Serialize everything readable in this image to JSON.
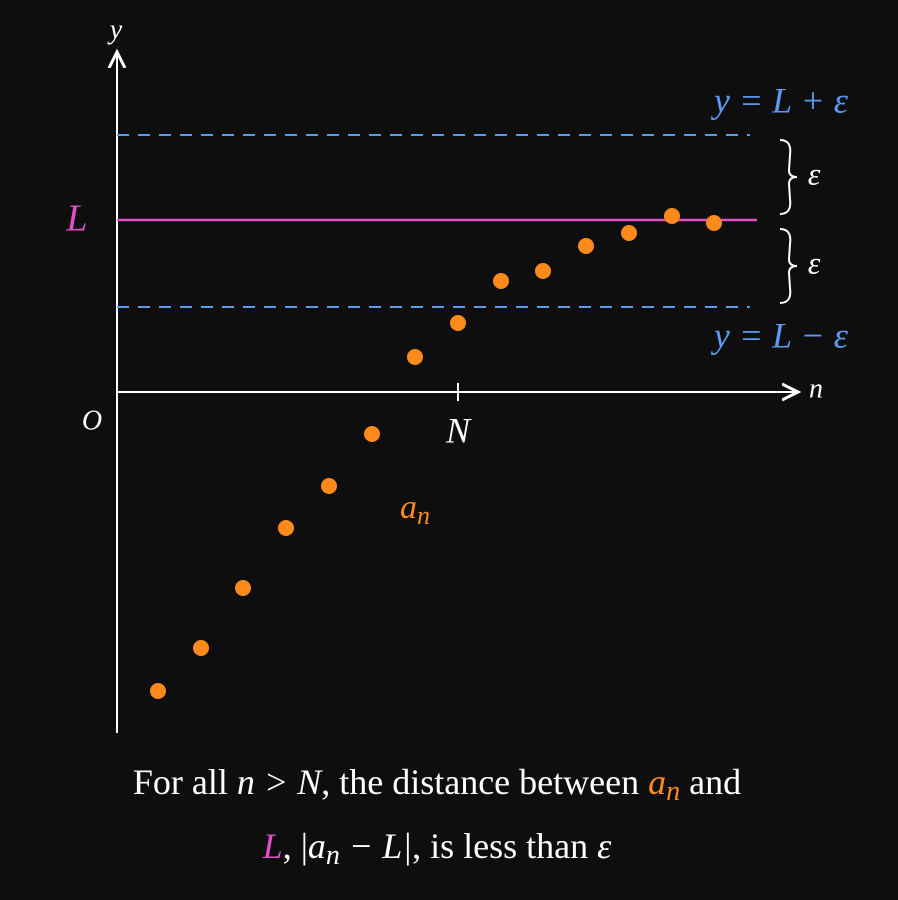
{
  "axes": {
    "y_label": "y",
    "x_label": "n",
    "origin": "O",
    "n_tick": "N",
    "limit": "L"
  },
  "bands": {
    "upper": "y = L + ε",
    "lower": "y = L − ε",
    "upper_gap": "ε",
    "lower_gap": "ε"
  },
  "sequence": {
    "label": "a",
    "subscript": "n"
  },
  "caption": {
    "line1": [
      "For all ",
      "n > N",
      ", the distance between ",
      "a",
      "n",
      " and"
    ],
    "line2": [
      "L",
      ", |",
      "a",
      "n",
      " − L|",
      ", is less than ",
      "ε"
    ]
  }
}
